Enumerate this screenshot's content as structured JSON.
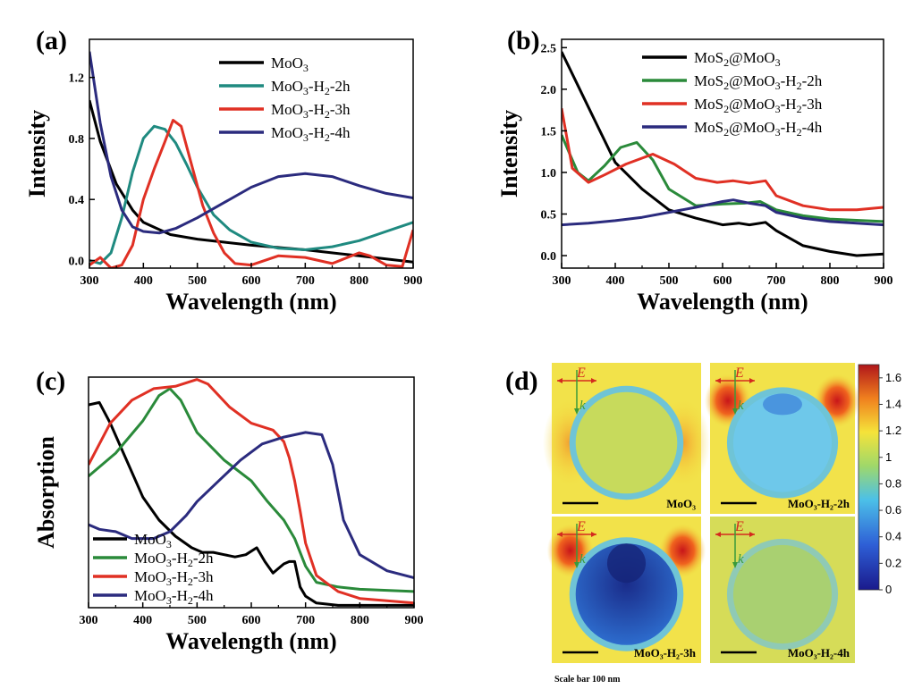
{
  "chart_data": [
    {
      "panel": "(a)",
      "type": "line",
      "xlabel": "Wavelength (nm)",
      "ylabel": "Intensity",
      "xlim": [
        300,
        900
      ],
      "ylim": [
        -0.05,
        1.45
      ],
      "xticks": [
        "300",
        "400",
        "500",
        "600",
        "700",
        "800",
        "900"
      ],
      "yticks": [
        "0.0",
        "0.4",
        "0.8",
        "1.2"
      ],
      "legend_position": "top-right",
      "series": [
        {
          "name": "MoO3",
          "color": "#000000",
          "x": [
            300,
            320,
            350,
            380,
            400,
            450,
            500,
            550,
            600,
            700,
            800,
            900
          ],
          "y": [
            1.05,
            0.78,
            0.5,
            0.33,
            0.25,
            0.17,
            0.14,
            0.12,
            0.1,
            0.07,
            0.03,
            -0.01
          ]
        },
        {
          "name": "MoO3-H2-2h",
          "color": "#1f8a80",
          "x": [
            300,
            320,
            340,
            360,
            380,
            400,
            420,
            440,
            460,
            480,
            500,
            530,
            560,
            600,
            650,
            700,
            750,
            800,
            850,
            900
          ],
          "y": [
            0.0,
            -0.02,
            0.05,
            0.28,
            0.58,
            0.8,
            0.88,
            0.86,
            0.77,
            0.63,
            0.48,
            0.3,
            0.2,
            0.12,
            0.08,
            0.07,
            0.09,
            0.13,
            0.19,
            0.25
          ]
        },
        {
          "name": "MoO3-H2-3h",
          "color": "#e03024",
          "x": [
            300,
            320,
            340,
            360,
            380,
            400,
            420,
            440,
            455,
            470,
            490,
            510,
            530,
            550,
            570,
            600,
            650,
            700,
            750,
            800,
            820,
            850,
            880,
            900
          ],
          "y": [
            -0.03,
            0.02,
            -0.05,
            -0.03,
            0.1,
            0.4,
            0.6,
            0.78,
            0.92,
            0.88,
            0.62,
            0.36,
            0.18,
            0.05,
            -0.02,
            -0.03,
            0.03,
            0.02,
            -0.02,
            0.05,
            0.03,
            -0.03,
            -0.04,
            0.2
          ]
        },
        {
          "name": "MoO3-H2-4h",
          "color": "#2b2b7e",
          "x": [
            300,
            320,
            340,
            360,
            380,
            400,
            430,
            460,
            500,
            550,
            600,
            650,
            700,
            750,
            800,
            850,
            900
          ],
          "y": [
            1.37,
            0.9,
            0.55,
            0.33,
            0.22,
            0.19,
            0.18,
            0.21,
            0.28,
            0.38,
            0.48,
            0.55,
            0.57,
            0.55,
            0.49,
            0.44,
            0.41
          ]
        }
      ]
    },
    {
      "panel": "(b)",
      "type": "line",
      "xlabel": "Wavelength (nm)",
      "ylabel": "Intensity",
      "xlim": [
        300,
        900
      ],
      "ylim": [
        -0.15,
        2.6
      ],
      "xticks": [
        "300",
        "400",
        "500",
        "600",
        "700",
        "800",
        "900"
      ],
      "yticks": [
        "0.0",
        "0.5",
        "1.0",
        "1.5",
        "2.0",
        "2.5"
      ],
      "legend_position": "top-right",
      "series": [
        {
          "name": "MoS2@MoO3",
          "color": "#000000",
          "x": [
            300,
            330,
            360,
            400,
            450,
            500,
            550,
            600,
            630,
            650,
            680,
            700,
            750,
            800,
            850,
            900
          ],
          "y": [
            2.45,
            2.05,
            1.65,
            1.12,
            0.8,
            0.55,
            0.45,
            0.37,
            0.39,
            0.37,
            0.4,
            0.3,
            0.12,
            0.05,
            0.0,
            0.02
          ]
        },
        {
          "name": "MoS2@MoO3-H2-2h",
          "color": "#2a8a3a",
          "x": [
            300,
            330,
            350,
            380,
            410,
            440,
            470,
            500,
            550,
            600,
            640,
            670,
            700,
            750,
            800,
            900
          ],
          "y": [
            1.45,
            1.0,
            0.9,
            1.08,
            1.3,
            1.36,
            1.15,
            0.8,
            0.6,
            0.62,
            0.63,
            0.65,
            0.55,
            0.48,
            0.44,
            0.41
          ]
        },
        {
          "name": "MoS2@MoO3-H2-3h",
          "color": "#e03024",
          "x": [
            300,
            320,
            350,
            380,
            420,
            470,
            510,
            550,
            590,
            620,
            650,
            680,
            700,
            750,
            800,
            850,
            900
          ],
          "y": [
            1.77,
            1.05,
            0.88,
            0.97,
            1.1,
            1.22,
            1.1,
            0.93,
            0.88,
            0.9,
            0.87,
            0.9,
            0.72,
            0.6,
            0.55,
            0.55,
            0.58
          ]
        },
        {
          "name": "MoS2@MoO3-H2-4h",
          "color": "#2b2b7e",
          "x": [
            300,
            350,
            400,
            450,
            500,
            550,
            600,
            620,
            650,
            680,
            700,
            750,
            800,
            900
          ],
          "y": [
            0.37,
            0.39,
            0.42,
            0.46,
            0.52,
            0.58,
            0.65,
            0.67,
            0.63,
            0.6,
            0.52,
            0.45,
            0.41,
            0.37
          ]
        }
      ]
    },
    {
      "panel": "(c)",
      "type": "line",
      "xlabel": "Wavelength (nm)",
      "ylabel": "Absorption",
      "xlim": [
        300,
        900
      ],
      "ylim": [
        0,
        1
      ],
      "xticks": [
        "300",
        "400",
        "500",
        "600",
        "700",
        "800",
        "900"
      ],
      "yticks": [],
      "legend_position": "bottom-left",
      "series": [
        {
          "name": "MoO3",
          "color": "#000000",
          "x": [
            300,
            320,
            340,
            370,
            400,
            430,
            460,
            490,
            510,
            530,
            550,
            570,
            590,
            610,
            625,
            640,
            650,
            660,
            670,
            680,
            690,
            700,
            720,
            760,
            800,
            850,
            900
          ],
          "y": [
            0.88,
            0.89,
            0.8,
            0.64,
            0.48,
            0.38,
            0.31,
            0.26,
            0.24,
            0.24,
            0.23,
            0.22,
            0.23,
            0.26,
            0.2,
            0.15,
            0.17,
            0.19,
            0.2,
            0.2,
            0.09,
            0.05,
            0.02,
            0.01,
            0.01,
            0.01,
            0.01
          ]
        },
        {
          "name": "MoO3-H2-2h",
          "color": "#2a8a3a",
          "x": [
            300,
            350,
            400,
            430,
            450,
            470,
            500,
            550,
            600,
            630,
            660,
            680,
            700,
            720,
            760,
            800,
            900
          ],
          "y": [
            0.57,
            0.67,
            0.81,
            0.92,
            0.95,
            0.9,
            0.76,
            0.64,
            0.55,
            0.46,
            0.38,
            0.3,
            0.18,
            0.11,
            0.09,
            0.08,
            0.07
          ]
        },
        {
          "name": "MoO3-H2-3h",
          "color": "#e03024",
          "x": [
            300,
            340,
            380,
            420,
            460,
            500,
            520,
            560,
            600,
            640,
            660,
            670,
            680,
            690,
            700,
            720,
            760,
            800,
            850,
            900
          ],
          "y": [
            0.62,
            0.8,
            0.9,
            0.95,
            0.96,
            0.99,
            0.97,
            0.87,
            0.8,
            0.77,
            0.72,
            0.65,
            0.55,
            0.42,
            0.28,
            0.14,
            0.07,
            0.04,
            0.03,
            0.02
          ]
        },
        {
          "name": "MoO3-H2-4h",
          "color": "#2b2b7e",
          "x": [
            300,
            320,
            350,
            380,
            420,
            450,
            480,
            500,
            540,
            580,
            620,
            660,
            700,
            730,
            750,
            770,
            800,
            850,
            900
          ],
          "y": [
            0.36,
            0.34,
            0.33,
            0.3,
            0.3,
            0.33,
            0.4,
            0.46,
            0.55,
            0.64,
            0.71,
            0.74,
            0.76,
            0.75,
            0.62,
            0.38,
            0.23,
            0.16,
            0.13
          ]
        }
      ]
    },
    {
      "panel": "(d)",
      "type": "heatmap",
      "colorbar_ticks": [
        "1.6",
        "1.4",
        "1.2",
        "1",
        "0.8",
        "0.6",
        "0.4",
        "0.2",
        "0"
      ],
      "colorbar_range": [
        0,
        1.7
      ],
      "maps": [
        {
          "label": "MoO₃",
          "field_label": "E",
          "wave_label": "k"
        },
        {
          "label": "MoO₃-H₂-2h",
          "field_label": "E",
          "wave_label": "k"
        },
        {
          "label": "MoO₃-H₂-3h",
          "field_label": "E",
          "wave_label": "k"
        },
        {
          "label": "MoO₃-H₂-4h",
          "field_label": "E",
          "wave_label": "k"
        }
      ],
      "scale_bar_text": "Scale bar 100 nm"
    }
  ]
}
